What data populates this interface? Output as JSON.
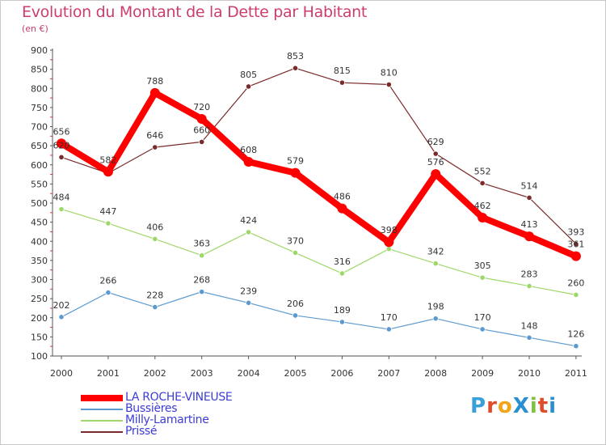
{
  "title": "Evolution du Montant de la Dette par Habitant",
  "unit": "(en €)",
  "logo": {
    "text": "ProXiti",
    "colors": [
      "#3aa0d8",
      "#e04c2b",
      "#f2a51a",
      "#2a8fd0",
      "#7cc242",
      "#e04c2b",
      "#2a8fd0"
    ]
  },
  "chart_data": {
    "type": "line",
    "title": "Evolution du Montant de la Dette par Habitant",
    "ylabel": "(en €)",
    "xlabel": "",
    "categories": [
      "2000",
      "2001",
      "2002",
      "2003",
      "2004",
      "2005",
      "2006",
      "2007",
      "2008",
      "2009",
      "2010",
      "2011"
    ],
    "ylim": [
      100,
      900
    ],
    "yticks": [
      100,
      150,
      200,
      250,
      300,
      350,
      400,
      450,
      500,
      550,
      600,
      650,
      700,
      750,
      800,
      850,
      900
    ],
    "grid": false,
    "legend_position": "bottom-left",
    "series": [
      {
        "name": "LA ROCHE-VINEUSE",
        "color": "#ff0000",
        "values": [
          656,
          582,
          788,
          720,
          608,
          579,
          486,
          398,
          576,
          462,
          413,
          361
        ],
        "labels": [
          "656",
          "582",
          "788",
          "720",
          "608",
          "579",
          "486",
          "398",
          "576",
          "462",
          "413",
          "361"
        ],
        "bold": true
      },
      {
        "name": "Bussières",
        "color": "#5b9ad0",
        "values": [
          202,
          266,
          228,
          268,
          239,
          206,
          189,
          170,
          198,
          170,
          148,
          126
        ],
        "labels": [
          "202",
          "266",
          "228",
          "268",
          "239",
          "206",
          "189",
          "170",
          "198",
          "170",
          "148",
          "126"
        ],
        "bold": false
      },
      {
        "name": "Milly-Lamartine",
        "color": "#9fd86a",
        "values": [
          484,
          447,
          406,
          363,
          424,
          370,
          316,
          380,
          342,
          305,
          283,
          260
        ],
        "labels": [
          "484",
          "447",
          "406",
          "363",
          "424",
          "370",
          "316",
          "",
          "342",
          "305",
          "283",
          "260"
        ],
        "bold": false
      },
      {
        "name": "Prissé",
        "color": "#7a2a2a",
        "values": [
          620,
          578,
          646,
          660,
          805,
          853,
          815,
          810,
          629,
          552,
          514,
          393
        ],
        "labels": [
          "620",
          "",
          "646",
          "660",
          "805",
          "853",
          "815",
          "810",
          "629",
          "552",
          "514",
          "393"
        ],
        "bold": false
      }
    ]
  }
}
